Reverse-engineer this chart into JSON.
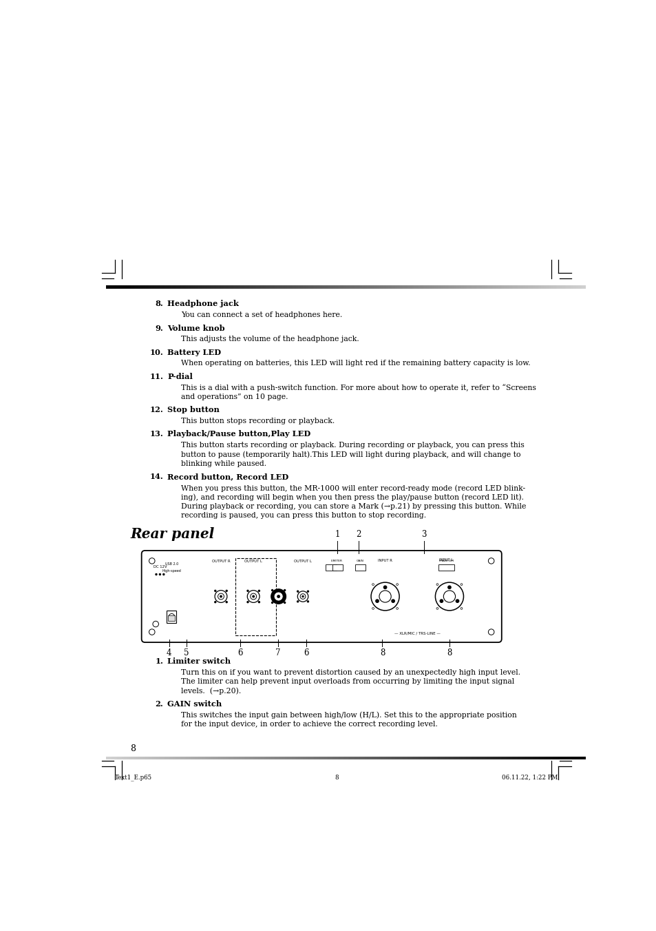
{
  "bg_color": "#ffffff",
  "page_width": 9.54,
  "page_height": 13.51,
  "sections": [
    {
      "number": "8.",
      "title": "Headphone jack",
      "body": "You can connect a set of headphones here."
    },
    {
      "number": "9.",
      "title": "Volume knob",
      "body": "This adjusts the volume of the headphone jack."
    },
    {
      "number": "10.",
      "title": "Battery LED",
      "body": "When operating on batteries, this LED will light red if the remaining battery capacity is low."
    },
    {
      "number": "11.",
      "title": "P-dial",
      "body": "This is a dial with a push-switch function. For more about how to operate it, refer to “Screens\nand operations” on 10 page."
    },
    {
      "number": "12.",
      "title": "Stop button",
      "body": "This button stops recording or playback."
    },
    {
      "number": "13.",
      "title": "Playback/Pause button,Play LED",
      "body": "This button starts recording or playback. During recording or playback, you can press this\nbutton to pause (temporarily halt).This LED will light during playback, and will change to\nblinking while paused."
    },
    {
      "number": "14.",
      "title": "Record button, Record LED",
      "body": "When you press this button, the MR-1000 will enter record-ready mode (record LED blink-\ning), and recording will begin when you then press the play/pause button (record LED lit).\nDuring playback or recording, you can store a Mark (→p.21) by pressing this button. While\nrecording is paused, you can press this button to stop recording."
    }
  ],
  "rear_panel_title": "Rear panel",
  "rear_sections": [
    {
      "number": "1.",
      "title": "Limiter switch",
      "body": "Turn this on if you want to prevent distortion caused by an unexpectedly high input level.\nThe limiter can help prevent input overloads from occurring by limiting the input signal\nlevels.  (→p.20)."
    },
    {
      "number": "2.",
      "title": "GAIN switch",
      "body": "This switches the input gain between high/low (H/L). Set this to the appropriate position\nfor the input device, in order to achieve the correct recording level."
    }
  ],
  "page_number": "8",
  "footer_left": "Text1_E.p65",
  "footer_center": "8",
  "footer_right": "06.11.22, 1:22 PM"
}
